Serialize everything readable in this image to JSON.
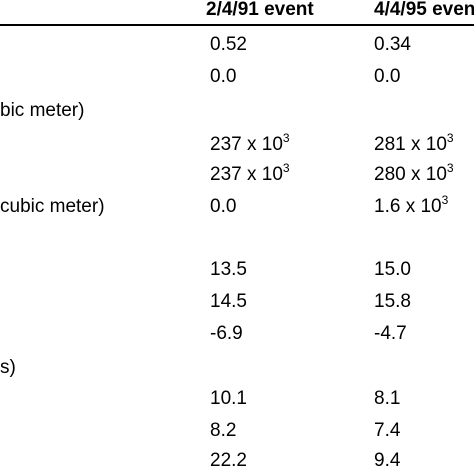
{
  "table": {
    "headers": {
      "col1": "2/4/91 event",
      "col2": "4/4/95 event"
    },
    "rows": [
      {
        "label": "",
        "c1": "0.52",
        "c2": "0.34"
      },
      {
        "label": "",
        "c1": "0.0",
        "c2": "0.0"
      },
      {
        "label": "bic meter)",
        "c1": "",
        "c2": ""
      },
      {
        "label": "",
        "c1_base": "237 x 10",
        "c1_exp": "3",
        "c2_base": "281 x 10",
        "c2_exp": "3"
      },
      {
        "label": "",
        "c1_base": "237 x 10",
        "c1_exp": "3",
        "c2_base": "280 x 10",
        "c2_exp": "3"
      },
      {
        "label": "cubic meter)",
        "c1": "0.0",
        "c2_base": "1.6 x 10",
        "c2_exp": "3"
      },
      {
        "label": "",
        "c1": "13.5",
        "c2": "15.0"
      },
      {
        "label": "",
        "c1": "14.5",
        "c2": "15.8"
      },
      {
        "label": "",
        "c1": "-6.9",
        "c2": "-4.7"
      },
      {
        "label": "s)",
        "c1": "",
        "c2": ""
      },
      {
        "label": "",
        "c1": "10.1",
        "c2": "8.1"
      },
      {
        "label": "",
        "c1": "8.2",
        "c2": "7.4"
      },
      {
        "label": "",
        "c1": "22.2",
        "c2": "9.4"
      }
    ]
  }
}
